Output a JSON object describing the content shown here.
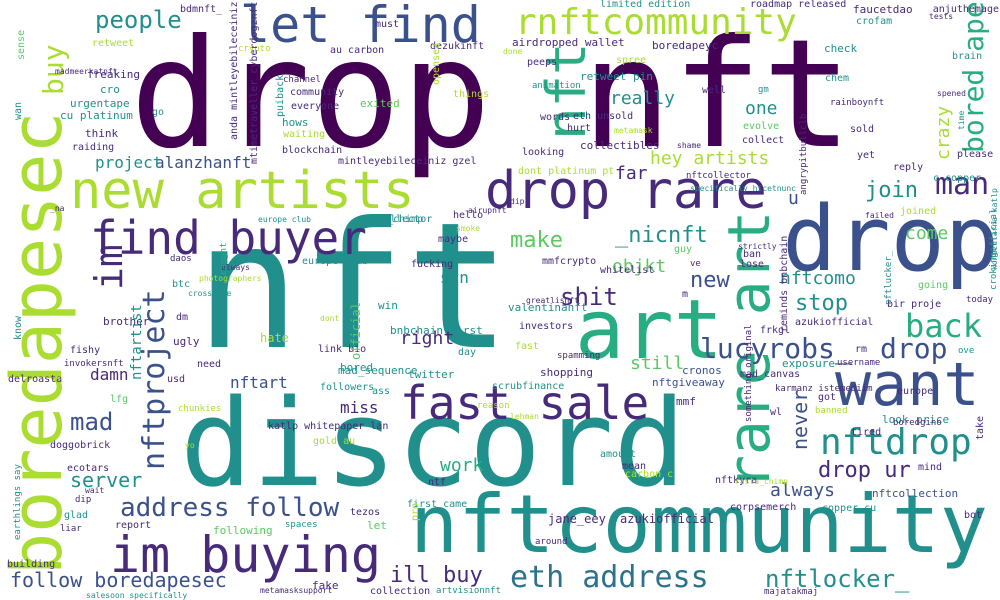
{
  "palette": {
    "purple": "#440154",
    "violet": "#472a7a",
    "indigo": "#3b518b",
    "blue": "#2c718e",
    "teal": "#21908d",
    "green": "#27ad81",
    "lime": "#5cc863",
    "yellow_green": "#aadc32",
    "yellow": "#fde725"
  },
  "words": [
    "drop nft",
    "nft",
    "discord",
    "nftcommunity",
    "drop",
    "art",
    "want",
    "drop rare",
    "new artists",
    "find buyer",
    "rare art",
    "im buying",
    "fast sale",
    "boredapesec",
    "let find",
    "nft",
    "rnftcommunity",
    "nftdrop",
    "im",
    "eth address",
    "address follow",
    "follow boredapesec",
    "lucyrobs_",
    "drop",
    "back",
    "man",
    "bored ape",
    "nftlocker_",
    "nftproject",
    "buy",
    "ill buy",
    "drop ur",
    "people",
    "make",
    "shit",
    "nftcomo",
    "stop",
    "join",
    "hey artists",
    "_nicnft",
    "work",
    "server",
    "mad",
    "always",
    "never",
    "crazy",
    "alanzhanft",
    "project",
    "really",
    "new",
    "objkt",
    "svn",
    "nftart",
    "nftartist",
    "still",
    "miss",
    "right",
    "damn",
    "far",
    "u",
    "come",
    "one",
    "jane_eey",
    "azukiofficial",
    "nftcollection",
    "nftgiveaway",
    "mad_sequence",
    "link bio",
    "scrubfinance",
    "shopping",
    "followers",
    "bored",
    "cronos",
    "retweet pin",
    "airdropped wallet",
    "boredapeyc",
    "dezukinft",
    "faucetdao",
    "roadmap released",
    "check",
    "crofam",
    "brain",
    "chem",
    "rainboynft",
    "sold",
    "yet",
    "reply",
    "please",
    "c copper",
    "joined",
    "going",
    "official",
    "bir proje",
    "today",
    "mmf",
    "got",
    "look",
    "price",
    "take",
    "tired",
    "mind",
    "bot",
    "copper cu",
    "nftcollector",
    "rasta_chimp",
    "hello",
    "maybe",
    "fucking",
    "whitelist",
    "guy",
    "europe club",
    "nftkyra",
    "gold au",
    "tezos",
    "let",
    "fake",
    "collection",
    "artvisionnft",
    "first came",
    "following",
    "spaces",
    "report",
    "glad",
    "building",
    "liar",
    "dip",
    "ecotars",
    "doggobrick",
    "lfg",
    "fishy",
    "brother",
    "invokersnft",
    "delroasta",
    "daos",
    "btc",
    "dm",
    "ugly",
    "need",
    "usd",
    "peeps",
    "animation",
    "words",
    "eth unsold",
    "collectibles",
    "looking",
    "dont platinum pt",
    "hurt",
    "hate",
    "ass",
    "win",
    "twitter",
    "bnbchain first",
    "investors",
    "spamming",
    "day",
    "fast",
    "smoke",
    "ntf",
    "mean",
    "amount",
    "carbon c",
    "exposure",
    "mad_canvas",
    "username",
    "ove",
    "banned",
    "boredgino",
    "wl",
    "chunkies",
    "reason",
    "lehman",
    "cu platinum",
    "urgentape",
    "cro",
    "go",
    "freaking",
    "retweet",
    "madmeerkatnft",
    "sense",
    "think",
    "raiding",
    "bdmnft_",
    "au carbon",
    "done",
    "must",
    "spree",
    "things",
    "opensea",
    "waiting",
    "hows",
    "blockchain",
    "everyone",
    "puiback",
    "community",
    "channel",
    "exited",
    "well",
    "gm",
    "evolve",
    "collect",
    "shame",
    "metamask",
    "spened",
    "tests",
    "anjuthemage",
    "time",
    "crypto",
    "limited edition",
    "salesoon specifically",
    "metamasksupport",
    "majatakmaj",
    "karmanz istemediim",
    "always",
    "photographers",
    "crossfire",
    "caught",
    "failed",
    "strictly",
    "ban",
    "lose",
    "ve",
    "mmfcrypto",
    "m",
    "valentinanft_",
    "frkgl",
    "azukiofficial",
    "rm",
    "europe",
    "europe club",
    "_na",
    "wan",
    "know",
    "earthlings say",
    "mtimetraveller cyberdogznft",
    "anda mintleyebileceiniz",
    "mintleyebileceiniz gzel",
    "specifically hicetnunc",
    "angrypitbullclb",
    "nftcollector",
    "reminds bnbchain",
    "corpsemerch",
    "something original",
    "nftlucker_",
    "katlp whitepaper lan",
    "konucularna katlp",
    "crokingofficial",
    "greatlisnft",
    "around",
    "dont",
    "yo",
    "pro",
    "wait",
    "airupnft",
    "dip",
    "rasta_chimp",
    "smoke",
    "katlp"
  ]
}
